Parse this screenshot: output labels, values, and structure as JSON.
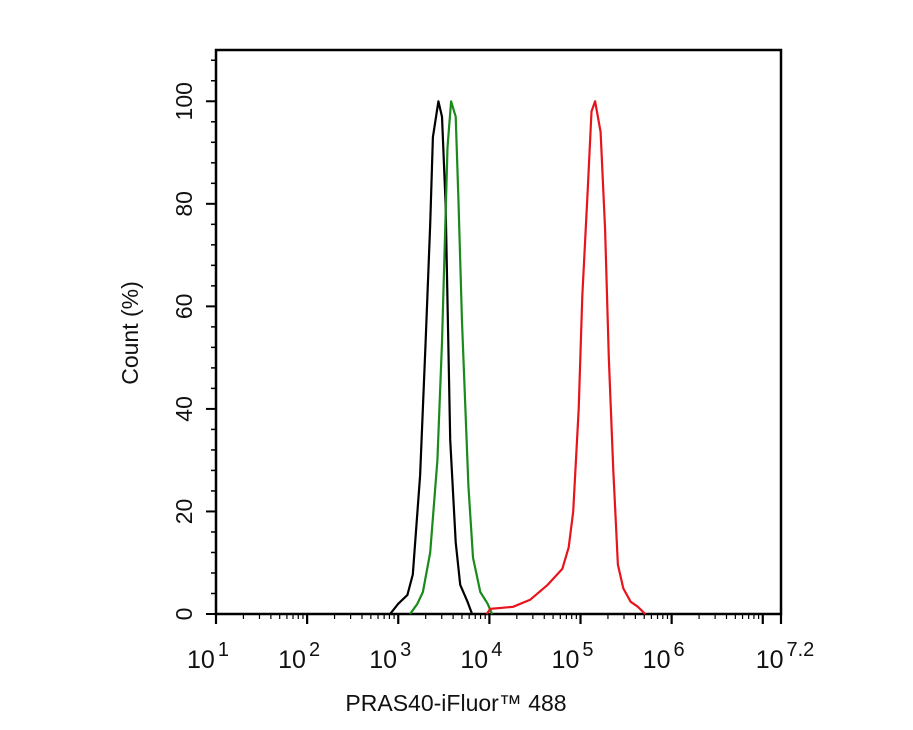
{
  "chart_data": {
    "type": "line",
    "title": "",
    "xlabel": "PRAS40-iFluor™ 488",
    "ylabel": "Count  (%)",
    "x_scale": "log10",
    "xlim_log10": [
      1,
      7.2
    ],
    "ylim": [
      0,
      110
    ],
    "grid": false,
    "legend": "none",
    "x_ticks": [
      {
        "base": "10",
        "exp": "1",
        "log": 1
      },
      {
        "base": "10",
        "exp": "2",
        "log": 2
      },
      {
        "base": "10",
        "exp": "3",
        "log": 3
      },
      {
        "base": "10",
        "exp": "4",
        "log": 4
      },
      {
        "base": "10",
        "exp": "5",
        "log": 5
      },
      {
        "base": "10",
        "exp": "6",
        "log": 6
      },
      {
        "base": "10",
        "exp": "7.2",
        "log": 7.2
      }
    ],
    "y_ticks": [
      "0",
      "20",
      "40",
      "60",
      "80",
      "100"
    ],
    "series": [
      {
        "color": "#000000",
        "x_log10": [
          2.91,
          3.0,
          3.1,
          3.16,
          3.24,
          3.3,
          3.35,
          3.38,
          3.44,
          3.48,
          3.52,
          3.57,
          3.63,
          3.68,
          3.76,
          3.81
        ],
        "y": [
          0,
          2,
          3.7,
          7.7,
          27,
          53,
          76,
          93,
          100,
          97,
          80,
          34,
          14,
          5.7,
          2.4,
          0
        ]
      },
      {
        "color": "#1a8a1a",
        "x_log10": [
          3.13,
          3.21,
          3.27,
          3.35,
          3.43,
          3.48,
          3.54,
          3.58,
          3.63,
          3.66,
          3.7,
          3.77,
          3.82,
          3.9,
          3.98,
          4.03
        ],
        "y": [
          0,
          2,
          4.3,
          12,
          30,
          53,
          91,
          100,
          97,
          81,
          57,
          25,
          11,
          4.3,
          2,
          0
        ]
      },
      {
        "color": "#e8141c",
        "x_log10": [
          3.97,
          4.01,
          4.26,
          4.45,
          4.64,
          4.8,
          4.87,
          4.92,
          4.98,
          5.02,
          5.08,
          5.12,
          5.16,
          5.22,
          5.27,
          5.31,
          5.36,
          5.41,
          5.47,
          5.55,
          5.63,
          5.71
        ],
        "y": [
          0,
          1,
          1.4,
          2.8,
          5.7,
          8.8,
          13,
          20,
          40,
          62,
          83,
          98,
          100,
          94,
          75,
          50,
          28,
          9.6,
          5,
          2.4,
          1.4,
          0
        ]
      }
    ]
  }
}
